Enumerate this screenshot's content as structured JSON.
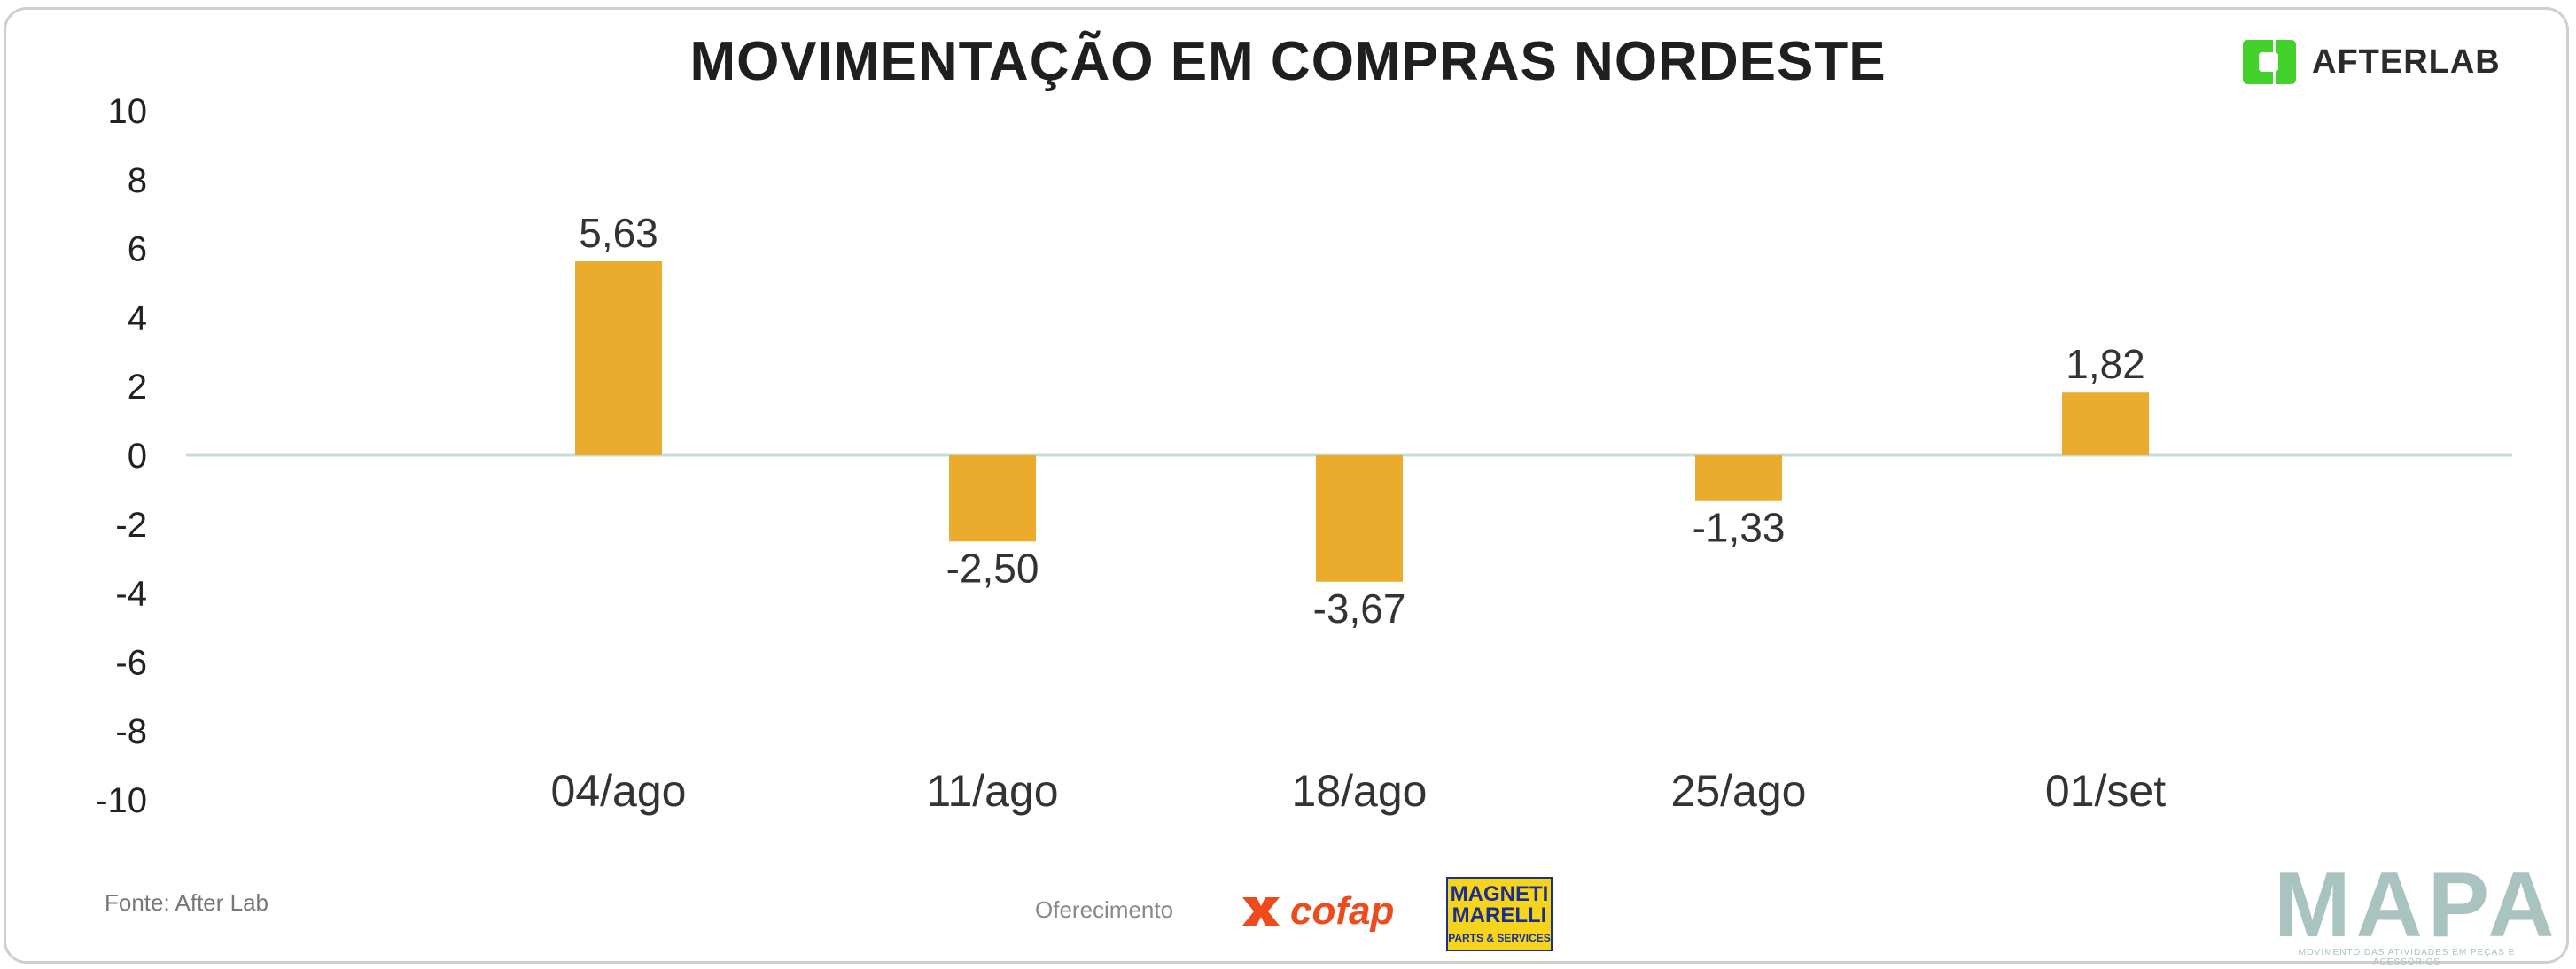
{
  "title": "MOVIMENTAÇÃO EM COMPRAS NORDESTE",
  "brand": {
    "name": "AFTERLAB",
    "icon": "afterlab-logo-icon",
    "color": "#43d12c"
  },
  "footer": {
    "source": "Fonte: After Lab",
    "sponsor_label": "Oferecimento",
    "sponsors": [
      {
        "name": "cofap",
        "icon": "cofap-logo-icon",
        "color": "#ee4a1c"
      },
      {
        "name": "MAGNETI MARELLI",
        "subtitle": "PARTS & SERVICES",
        "color": "#f6d41c"
      }
    ],
    "mapa": {
      "word": "MAPA",
      "tagline": "MOVIMENTO DAS ATIVIDADES EM PEÇAS E ACESSÓRIOS"
    }
  },
  "chart_data": {
    "type": "bar",
    "categories": [
      "04/ago",
      "11/ago",
      "18/ago",
      "25/ago",
      "01/set"
    ],
    "values": [
      5.63,
      -2.5,
      -3.67,
      -1.33,
      1.82
    ],
    "value_labels": [
      "5,63",
      "-2,50",
      "-3,67",
      "-1,33",
      "1,82"
    ],
    "ylim": [
      -10,
      10
    ],
    "yticks": [
      -10,
      -8,
      -6,
      -4,
      -2,
      0,
      2,
      4,
      6,
      8,
      10
    ],
    "ytick_labels": [
      "-10",
      "-8",
      "-6",
      "-4",
      "-2",
      "0",
      "2",
      "4",
      "6",
      "8",
      "10"
    ],
    "bar_color": "#ebab2c",
    "zero_line_color": "#c8dcd6",
    "grid": false,
    "xlabel": "",
    "ylabel": ""
  }
}
